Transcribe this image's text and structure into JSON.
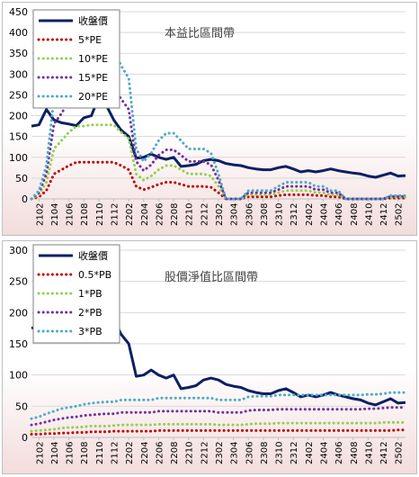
{
  "chart_data": [
    {
      "type": "line",
      "title": "本益比區間帶",
      "xlabel": "",
      "ylabel": "",
      "ylim": [
        0,
        450
      ],
      "yticks": [
        0,
        50,
        100,
        150,
        200,
        250,
        300,
        350,
        400,
        450
      ],
      "xtick_labels": [
        "2102",
        "2104",
        "2106",
        "2108",
        "2110",
        "2112",
        "2202",
        "2204",
        "2206",
        "2208",
        "2210",
        "2212",
        "2302",
        "2304",
        "2306",
        "2308",
        "2310",
        "2312",
        "2402",
        "2404",
        "2406",
        "2408",
        "2410",
        "2412",
        "2502"
      ],
      "grid": true,
      "legend_position": "top-left",
      "categories": [
        "2101",
        "2102",
        "2103",
        "2104",
        "2105",
        "2106",
        "2107",
        "2108",
        "2109",
        "2110",
        "2111",
        "2112",
        "2201",
        "2202",
        "2203",
        "2204",
        "2205",
        "2206",
        "2207",
        "2208",
        "2209",
        "2210",
        "2211",
        "2212",
        "2301",
        "2302",
        "2303",
        "2304",
        "2305",
        "2306",
        "2307",
        "2308",
        "2309",
        "2310",
        "2311",
        "2312",
        "2401",
        "2402",
        "2403",
        "2404",
        "2405",
        "2406",
        "2407",
        "2408",
        "2409",
        "2410",
        "2411",
        "2412",
        "2501",
        "2502",
        "2503"
      ],
      "series": [
        {
          "name": "收盤價",
          "color": "#0d1f63",
          "style": "solid",
          "values": [
            175,
            178,
            215,
            190,
            183,
            180,
            176,
            195,
            200,
            245,
            225,
            190,
            165,
            150,
            98,
            100,
            108,
            100,
            95,
            100,
            78,
            80,
            83,
            92,
            95,
            92,
            85,
            82,
            80,
            75,
            72,
            70,
            70,
            75,
            78,
            72,
            65,
            68,
            65,
            68,
            72,
            68,
            65,
            62,
            60,
            55,
            52,
            57,
            62,
            55,
            56
          ]
        },
        {
          "name": "5*PE",
          "color": "#c00000",
          "style": "dotted",
          "values": [
            0,
            5,
            20,
            60,
            70,
            80,
            88,
            88,
            88,
            88,
            88,
            88,
            80,
            70,
            30,
            22,
            28,
            35,
            40,
            40,
            35,
            30,
            30,
            30,
            28,
            15,
            0,
            0,
            0,
            5,
            5,
            5,
            5,
            8,
            10,
            10,
            10,
            10,
            8,
            8,
            5,
            5,
            0,
            0,
            0,
            0,
            0,
            0,
            2,
            2,
            2
          ]
        },
        {
          "name": "10*PE",
          "color": "#92d050",
          "style": "dotted",
          "values": [
            0,
            10,
            40,
            120,
            140,
            160,
            175,
            175,
            178,
            178,
            178,
            178,
            160,
            145,
            60,
            45,
            55,
            70,
            80,
            80,
            70,
            60,
            60,
            60,
            55,
            30,
            0,
            0,
            0,
            10,
            10,
            10,
            10,
            15,
            20,
            20,
            20,
            20,
            15,
            15,
            10,
            10,
            0,
            0,
            0,
            0,
            0,
            0,
            4,
            4,
            4
          ]
        },
        {
          "name": "15*PE",
          "color": "#7030a0",
          "style": "dotted",
          "values": [
            0,
            15,
            60,
            180,
            205,
            235,
            262,
            262,
            265,
            265,
            265,
            265,
            240,
            215,
            90,
            68,
            82,
            105,
            118,
            118,
            105,
            90,
            90,
            90,
            82,
            45,
            0,
            0,
            0,
            15,
            15,
            15,
            15,
            22,
            30,
            30,
            30,
            30,
            22,
            22,
            15,
            15,
            0,
            0,
            0,
            0,
            0,
            0,
            6,
            6,
            6
          ]
        },
        {
          "name": "20*PE",
          "color": "#4bacc6",
          "style": "dotted",
          "values": [
            0,
            20,
            80,
            240,
            275,
            315,
            350,
            350,
            355,
            355,
            355,
            355,
            320,
            290,
            120,
            90,
            110,
            140,
            158,
            158,
            140,
            120,
            120,
            120,
            110,
            60,
            0,
            0,
            0,
            20,
            20,
            20,
            20,
            30,
            40,
            40,
            40,
            40,
            30,
            30,
            20,
            20,
            0,
            0,
            0,
            0,
            0,
            0,
            8,
            8,
            8
          ]
        }
      ]
    },
    {
      "type": "line",
      "title": "股價淨值比區間帶",
      "xlabel": "",
      "ylabel": "",
      "ylim": [
        0,
        300
      ],
      "yticks": [
        0,
        50,
        100,
        150,
        200,
        250,
        300
      ],
      "xtick_labels": [
        "2102",
        "2104",
        "2106",
        "2108",
        "2110",
        "2112",
        "2202",
        "2204",
        "2206",
        "2208",
        "2210",
        "2212",
        "2302",
        "2304",
        "2306",
        "2308",
        "2310",
        "2312",
        "2402",
        "2404",
        "2406",
        "2408",
        "2410",
        "2412",
        "2502"
      ],
      "grid": true,
      "legend_position": "top-left",
      "categories": [
        "2101",
        "2102",
        "2103",
        "2104",
        "2105",
        "2106",
        "2107",
        "2108",
        "2109",
        "2110",
        "2111",
        "2112",
        "2201",
        "2202",
        "2203",
        "2204",
        "2205",
        "2206",
        "2207",
        "2208",
        "2209",
        "2210",
        "2211",
        "2212",
        "2301",
        "2302",
        "2303",
        "2304",
        "2305",
        "2306",
        "2307",
        "2308",
        "2309",
        "2310",
        "2311",
        "2312",
        "2401",
        "2402",
        "2403",
        "2404",
        "2405",
        "2406",
        "2407",
        "2408",
        "2409",
        "2410",
        "2411",
        "2412",
        "2501",
        "2502",
        "2503"
      ],
      "series": [
        {
          "name": "收盤價",
          "color": "#0d1f63",
          "style": "solid",
          "values": [
            175,
            178,
            215,
            190,
            183,
            180,
            176,
            195,
            200,
            245,
            225,
            190,
            165,
            150,
            98,
            100,
            108,
            100,
            95,
            100,
            78,
            80,
            83,
            92,
            95,
            92,
            85,
            82,
            80,
            75,
            72,
            70,
            70,
            75,
            78,
            72,
            65,
            68,
            65,
            68,
            72,
            68,
            65,
            62,
            60,
            55,
            52,
            57,
            62,
            55,
            56
          ]
        },
        {
          "name": "0.5*PB",
          "color": "#c00000",
          "style": "dotted",
          "values": [
            5,
            5,
            6,
            6,
            7,
            7,
            8,
            8,
            9,
            9,
            9,
            10,
            10,
            10,
            10,
            10,
            10,
            11,
            11,
            11,
            11,
            11,
            11,
            11,
            11,
            11,
            11,
            11,
            11,
            11,
            11,
            11,
            11,
            11,
            11,
            11,
            11,
            11,
            11,
            11,
            11,
            11,
            11,
            11,
            11,
            11,
            11,
            11,
            11,
            12,
            12
          ]
        },
        {
          "name": "1*PB",
          "color": "#92d050",
          "style": "dotted",
          "values": [
            10,
            11,
            12,
            13,
            15,
            16,
            16,
            17,
            18,
            18,
            18,
            19,
            20,
            20,
            20,
            20,
            20,
            21,
            21,
            21,
            21,
            21,
            21,
            21,
            21,
            20,
            20,
            20,
            20,
            21,
            22,
            22,
            22,
            23,
            23,
            23,
            23,
            23,
            23,
            23,
            23,
            23,
            23,
            23,
            23,
            23,
            23,
            24,
            24,
            24,
            24
          ]
        },
        {
          "name": "2*PB",
          "color": "#7030a0",
          "style": "dotted",
          "values": [
            20,
            22,
            25,
            28,
            30,
            32,
            33,
            35,
            36,
            37,
            38,
            38,
            40,
            40,
            40,
            40,
            40,
            42,
            42,
            42,
            42,
            42,
            42,
            42,
            42,
            40,
            40,
            40,
            40,
            43,
            44,
            44,
            44,
            45,
            45,
            45,
            45,
            45,
            45,
            45,
            45,
            45,
            45,
            45,
            45,
            46,
            46,
            47,
            48,
            48,
            48
          ]
        },
        {
          "name": "3*PB",
          "color": "#4bacc6",
          "style": "dotted",
          "values": [
            30,
            33,
            38,
            42,
            46,
            48,
            50,
            53,
            55,
            56,
            57,
            57,
            60,
            60,
            60,
            60,
            60,
            63,
            63,
            63,
            63,
            63,
            63,
            63,
            63,
            60,
            60,
            60,
            60,
            65,
            66,
            66,
            66,
            68,
            68,
            68,
            68,
            68,
            68,
            68,
            68,
            68,
            68,
            68,
            68,
            69,
            69,
            70,
            72,
            72,
            72
          ]
        }
      ]
    }
  ]
}
